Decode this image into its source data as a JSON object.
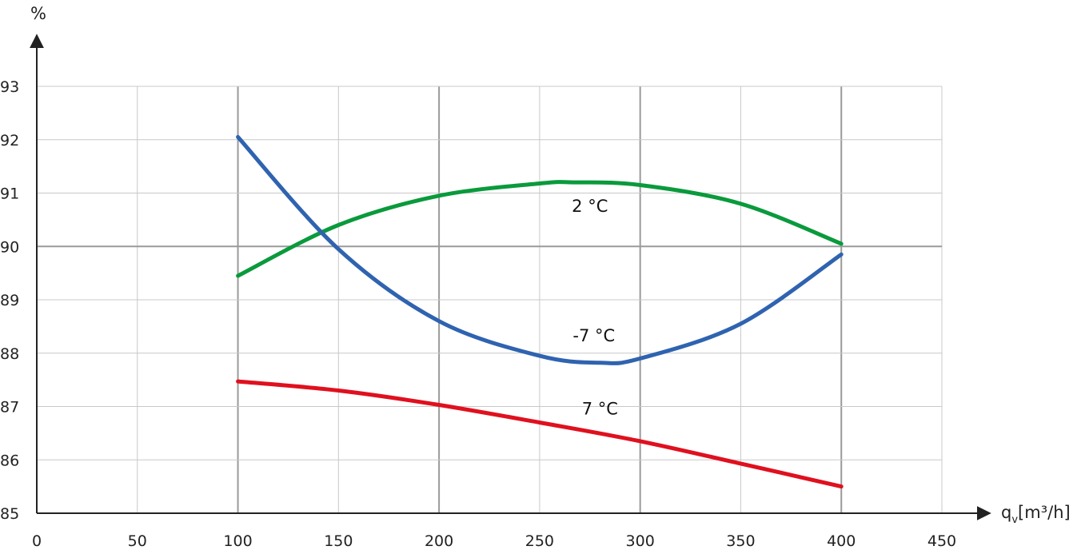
{
  "chart_data": {
    "type": "line",
    "title": "",
    "xlabel": "q",
    "xlabel_sub": "v",
    "xlabel_unit": "[m³/h]",
    "ylabel": "%",
    "xlim": [
      0,
      450
    ],
    "ylim": [
      85,
      93
    ],
    "x_ticks": [
      0,
      50,
      100,
      150,
      200,
      250,
      300,
      350,
      400,
      450
    ],
    "x_tick_labels": [
      "0",
      "50",
      "100",
      "150",
      "200",
      "250",
      "300",
      "350",
      "400",
      "450"
    ],
    "y_ticks": [
      85,
      86,
      87,
      88,
      89,
      90,
      91,
      92,
      93
    ],
    "y_tick_labels": [
      "85",
      "86",
      "87",
      "88",
      "89",
      "90",
      "91",
      "92",
      "93"
    ],
    "grid": true,
    "legend": "none",
    "series": [
      {
        "name": "2 °C",
        "color": "#0a9a3c",
        "x": [
          100,
          150,
          200,
          250,
          267,
          300,
          350,
          400
        ],
        "y": [
          89.45,
          90.4,
          90.95,
          91.18,
          91.2,
          91.15,
          90.8,
          90.05
        ],
        "label_at": [
          275,
          90.65
        ]
      },
      {
        "name": "-7 °C",
        "color": "#2f63b0",
        "x": [
          100,
          150,
          200,
          250,
          280,
          300,
          350,
          400
        ],
        "y": [
          92.05,
          89.95,
          88.6,
          87.95,
          87.82,
          87.9,
          88.55,
          89.85
        ],
        "label_at": [
          277,
          88.22
        ]
      },
      {
        "name": "7 °C",
        "color": "#e0101e",
        "x": [
          100,
          150,
          200,
          250,
          300,
          350,
          400
        ],
        "y": [
          87.47,
          87.3,
          87.03,
          86.7,
          86.35,
          85.93,
          85.5
        ],
        "label_at": [
          280,
          86.85
        ]
      }
    ]
  }
}
